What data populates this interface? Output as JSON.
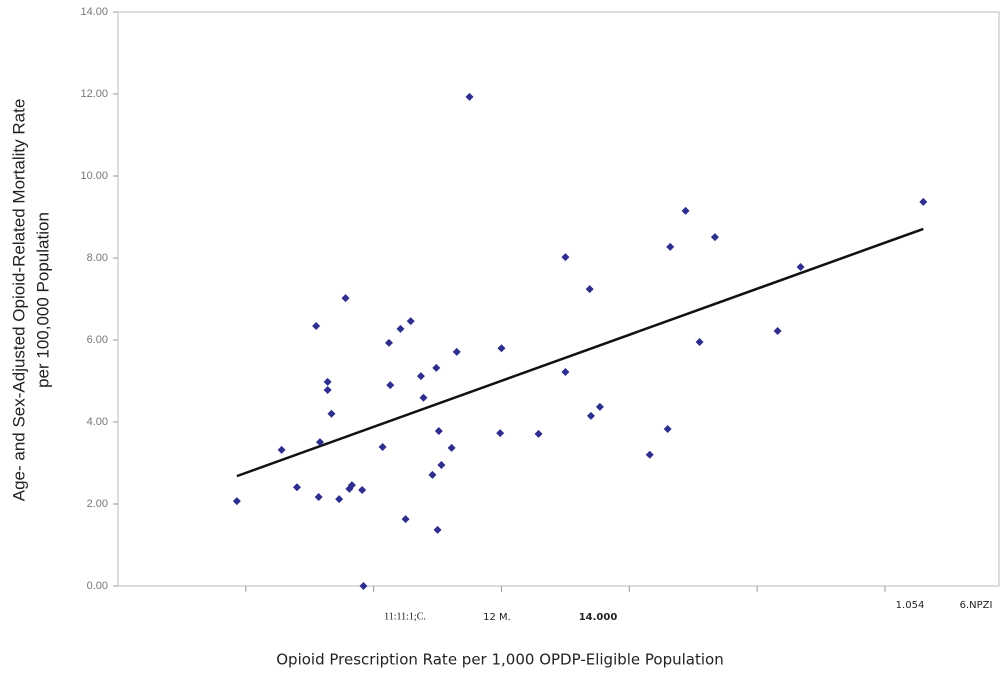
{
  "chart_data": {
    "type": "scatter",
    "y_label": [
      "Age- and Sex-Adjusted Opioid-Related Mortality Rate",
      "per 100,000 Population"
    ],
    "x_label": "Opioid Prescription Rate per 1,000 OPDP-Eligible Population",
    "x_axis_texts": [
      "11:11:1;C.",
      "12 M.",
      "14.000",
      "1.054",
      "6.NPZI"
    ],
    "color": "#2e2e8f",
    "x": [
      0.93,
      1.28,
      1.4,
      1.55,
      1.57,
      1.58,
      1.64,
      1.64,
      1.67,
      1.73,
      1.78,
      1.81,
      1.83,
      1.91,
      1.92,
      2.07,
      2.12,
      2.13,
      2.21,
      2.25,
      2.29,
      2.37,
      2.39,
      2.46,
      2.49,
      2.5,
      2.51,
      2.53,
      2.61,
      2.65,
      2.75,
      3.0,
      2.99,
      3.29,
      3.5,
      3.5,
      3.69,
      3.7,
      3.77,
      4.16,
      4.3,
      4.32,
      4.44,
      4.55,
      4.67,
      5.16,
      5.34,
      6.3
    ],
    "values": [
      2.07,
      3.32,
      2.41,
      6.34,
      2.17,
      3.51,
      4.98,
      4.78,
      4.2,
      2.12,
      7.02,
      2.37,
      2.46,
      2.34,
      0,
      3.39,
      5.93,
      4.9,
      6.27,
      1.63,
      6.46,
      5.12,
      4.59,
      2.71,
      5.32,
      1.37,
      3.78,
      2.95,
      3.37,
      5.71,
      11.93,
      5.8,
      3.73,
      3.71,
      8.02,
      5.22,
      7.24,
      4.15,
      4.37,
      3.2,
      3.83,
      8.27,
      9.15,
      5.95,
      8.51,
      6.22,
      7.78,
      9.37
    ],
    "trendline": {
      "x": [
        0.93,
        6.3
      ],
      "y": [
        2.68,
        8.71
      ],
      "color": "#111111"
    },
    "xlim": [
      0,
      6.9
    ],
    "xticks": [
      1,
      2,
      3,
      4,
      5,
      6
    ],
    "ylim": [
      0,
      14
    ],
    "yticks": [
      {
        "value": 0,
        "label": "0.00"
      },
      {
        "value": 2,
        "label": "2.00"
      },
      {
        "value": 4,
        "label": "4.00"
      },
      {
        "value": 6,
        "label": "6.00"
      },
      {
        "value": 8,
        "label": "8.00"
      },
      {
        "value": 10,
        "label": "10.00"
      },
      {
        "value": 12,
        "label": "12.00"
      },
      {
        "value": 14,
        "label": "14.00"
      }
    ]
  }
}
